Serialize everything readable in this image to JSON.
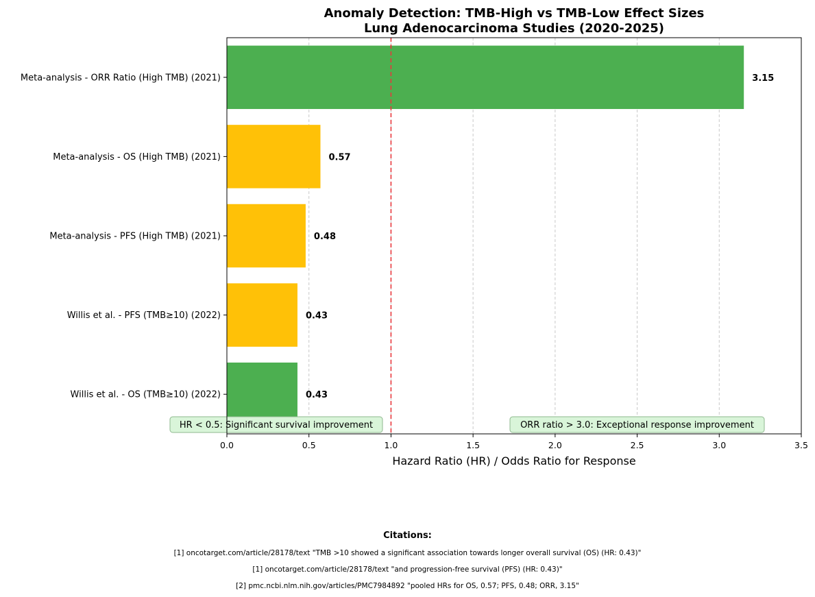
{
  "chart_data": {
    "type": "bar",
    "orientation": "horizontal",
    "title": "Anomaly Detection: TMB-High vs TMB-Low Effect Sizes",
    "subtitle": "Lung Adenocarcinoma Studies (2020-2025)",
    "xlabel": "Hazard Ratio (HR) / Odds Ratio for Response",
    "ylabel": "",
    "xlim": [
      0,
      3.5
    ],
    "xticks": [
      "0.0",
      "0.5",
      "1.0",
      "1.5",
      "2.0",
      "2.5",
      "3.0",
      "3.5"
    ],
    "grid": "x-dashed",
    "reference_line": {
      "x": 1.0,
      "color": "#e8383d",
      "style": "dashed"
    },
    "categories": [
      "Willis et al. - OS (TMB≥10) (2022)",
      "Willis et al. - PFS (TMB≥10) (2022)",
      "Meta-analysis - PFS (High TMB) (2021)",
      "Meta-analysis - OS (High TMB) (2021)",
      "Meta-analysis - ORR Ratio (High TMB) (2021)"
    ],
    "values": [
      0.43,
      0.43,
      0.48,
      0.57,
      3.15
    ],
    "value_labels": [
      "0.43",
      "0.43",
      "0.48",
      "0.57",
      "3.15"
    ],
    "bar_colors": [
      "#4caf50",
      "#ffc107",
      "#ffc107",
      "#ffc107",
      "#4caf50"
    ],
    "annotations": [
      {
        "text": "HR < 0.5: Significant survival improvement",
        "position": "bottom-left"
      },
      {
        "text": "ORR ratio > 3.0: Exceptional response improvement",
        "position": "bottom-right"
      }
    ]
  },
  "citations": {
    "title": "Citations:",
    "lines": [
      "[1] oncotarget.com/article/28178/text \"TMB >10 showed a significant association towards longer overall survival (OS) (HR: 0.43)\"",
      "[1] oncotarget.com/article/28178/text \"and progression-free survival (PFS) (HR: 0.43)\"",
      "[2] pmc.ncbi.nlm.nih.gov/articles/PMC7984892 \"pooled HRs for OS, 0.57; PFS, 0.48; ORR, 3.15\""
    ]
  },
  "colors": {
    "annotation_bg": "#d9f5d9",
    "annotation_border": "#8fb88f",
    "grid": "#c8c8c8"
  }
}
